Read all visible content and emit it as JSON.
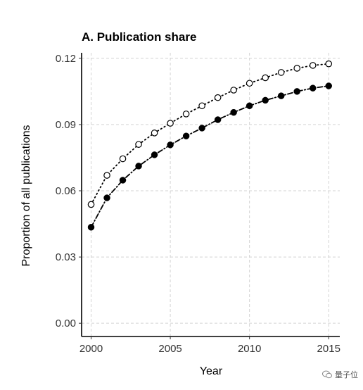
{
  "chart_data": {
    "type": "line",
    "title": "A. Publication share",
    "xlabel": "Year",
    "ylabel": "Proportion of all publications",
    "xlim": [
      1999.4,
      2015.7
    ],
    "ylim": [
      -0.006,
      0.1225
    ],
    "x_ticks": [
      2000,
      2005,
      2010,
      2015
    ],
    "y_ticks": [
      0.0,
      0.03,
      0.06,
      0.09,
      0.12
    ],
    "x_tick_labels": [
      "2000",
      "2005",
      "2010",
      "2015"
    ],
    "y_tick_labels": [
      "0.00",
      "0.03",
      "0.06",
      "0.09",
      "0.12"
    ],
    "grid": true,
    "x": [
      2000,
      2001,
      2002,
      2003,
      2004,
      2005,
      2006,
      2007,
      2008,
      2009,
      2010,
      2011,
      2012,
      2013,
      2014,
      2015
    ],
    "series": [
      {
        "marker": "open-circle",
        "line_style": "dotted",
        "values": [
          0.0538,
          0.067,
          0.0745,
          0.081,
          0.0862,
          0.0906,
          0.0948,
          0.0985,
          0.1022,
          0.1056,
          0.1087,
          0.1112,
          0.1136,
          0.1155,
          0.1168,
          0.1175
        ]
      },
      {
        "marker": "filled-circle",
        "line_style": "dashdot",
        "values": [
          0.0435,
          0.0568,
          0.0648,
          0.0712,
          0.0763,
          0.0808,
          0.0848,
          0.0884,
          0.0922,
          0.0955,
          0.0985,
          0.101,
          0.103,
          0.105,
          0.1065,
          0.1075
        ]
      }
    ]
  },
  "watermark": {
    "text": "量子位",
    "icon": "wechat-icon"
  }
}
